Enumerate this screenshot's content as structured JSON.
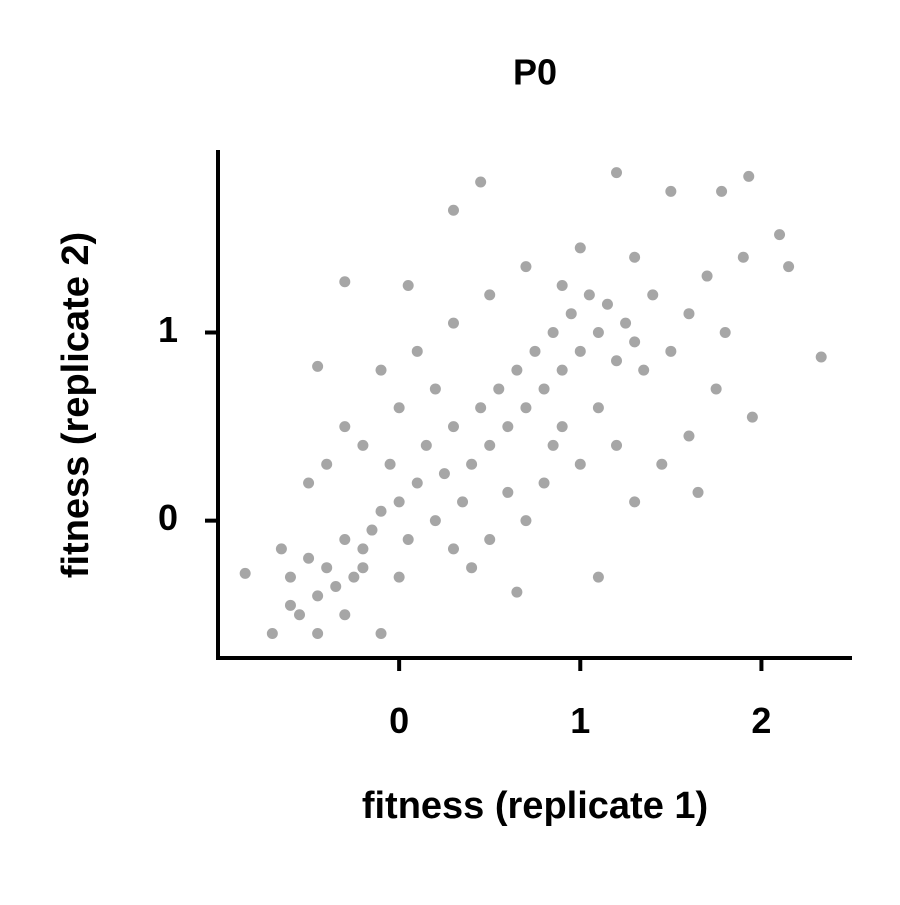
{
  "chart_data": {
    "type": "scatter",
    "title": "P0",
    "x_label": "fitness (replicate 1)",
    "y_label": "fitness (replicate 2)",
    "xlim": [
      -1.0,
      2.5
    ],
    "ylim": [
      -0.73,
      1.97
    ],
    "xticks": [
      0,
      1,
      2
    ],
    "yticks": [
      0,
      1
    ],
    "color": "#4d4d4d",
    "opacity": 0.5,
    "x": [
      -0.85,
      2.33,
      1.93,
      1.2,
      0.45,
      0.3,
      2.1,
      2.15,
      1.95,
      1.65,
      1.1,
      0.65,
      -0.1,
      -0.7,
      -0.45,
      -0.3,
      0.05,
      1.5,
      1.78,
      -0.45,
      -0.6,
      -0.5,
      -0.4,
      -0.35,
      -0.3,
      -0.25,
      -0.2,
      -0.15,
      -0.45,
      -0.55,
      -0.65,
      -0.1,
      0.0,
      0.05,
      0.1,
      -0.05,
      -0.2,
      -0.3,
      -0.4,
      -0.5,
      0.2,
      0.15,
      0.25,
      0.3,
      0.35,
      0.4,
      0.45,
      0.5,
      0.55,
      0.6,
      0.65,
      0.7,
      0.75,
      0.8,
      0.85,
      0.9,
      0.95,
      1.0,
      1.05,
      1.1,
      1.15,
      1.2,
      1.25,
      1.3,
      1.35,
      1.4,
      1.5,
      1.6,
      1.7,
      1.8,
      1.9,
      1.75,
      1.6,
      1.45,
      1.3,
      1.2,
      1.0,
      0.9,
      0.8,
      0.7,
      0.6,
      0.5,
      0.4,
      0.3,
      0.2,
      0.1,
      0.0,
      -0.1,
      0.3,
      0.5,
      0.7,
      0.9,
      1.0,
      1.3,
      1.1,
      0.85,
      -0.6,
      -0.3,
      -0.2,
      0.0
    ],
    "values": [
      -0.28,
      0.87,
      1.83,
      1.85,
      1.8,
      1.65,
      1.52,
      1.35,
      0.55,
      0.15,
      -0.3,
      -0.38,
      -0.6,
      -0.6,
      -0.6,
      1.27,
      1.25,
      1.75,
      1.75,
      0.82,
      -0.3,
      -0.2,
      -0.25,
      -0.35,
      -0.1,
      -0.3,
      -0.15,
      -0.05,
      -0.4,
      -0.5,
      -0.15,
      0.05,
      0.1,
      -0.1,
      0.2,
      0.3,
      0.4,
      0.5,
      0.3,
      0.2,
      0.0,
      0.4,
      0.25,
      0.5,
      0.1,
      0.3,
      0.6,
      0.4,
      0.7,
      0.5,
      0.8,
      0.6,
      0.9,
      0.7,
      1.0,
      0.8,
      1.1,
      0.9,
      1.2,
      1.0,
      1.15,
      0.85,
      1.05,
      0.95,
      0.8,
      1.2,
      0.9,
      1.1,
      1.3,
      1.0,
      1.4,
      0.7,
      0.45,
      0.3,
      0.1,
      0.4,
      0.3,
      0.5,
      0.2,
      0.0,
      0.15,
      -0.1,
      -0.25,
      -0.15,
      0.7,
      0.9,
      0.6,
      0.8,
      1.05,
      1.2,
      1.35,
      1.25,
      1.45,
      1.4,
      0.6,
      0.4,
      -0.45,
      -0.5,
      -0.25,
      -0.3
    ]
  }
}
